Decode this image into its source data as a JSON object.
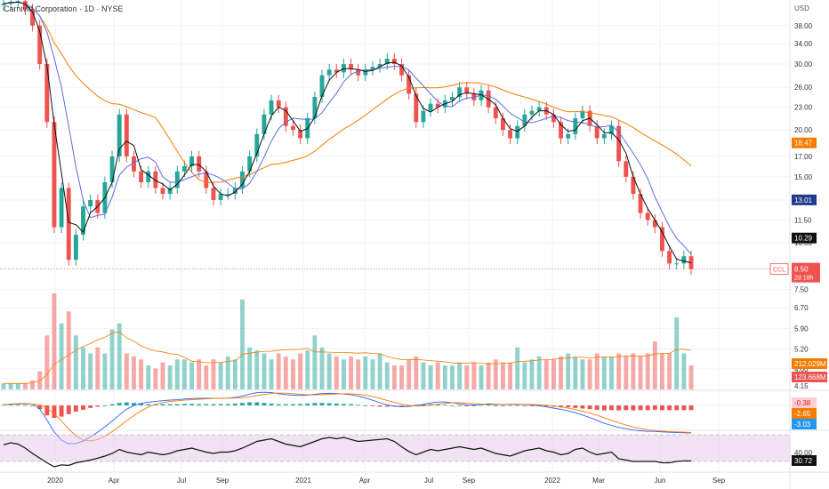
{
  "header": {
    "title": "Carnival Corporation · 1D · NYSE",
    "currency": "USD"
  },
  "chart_data": {
    "type": "candlestick",
    "ticker": "CCL",
    "currency": "USD",
    "x_tick_labels": [
      "2020",
      "Apr",
      "Jul",
      "Sep",
      "2021",
      "Apr",
      "Jul",
      "Sep",
      "2022",
      "Mar",
      "Jun",
      "Sep"
    ],
    "price_axis_ticks": [
      "38.00",
      "34.00",
      "30.00",
      "26.00",
      "23.00",
      "20.00",
      "17.00",
      "15.00",
      "13.00",
      "11.50",
      "10.00",
      "8.50",
      "7.50",
      "6.70",
      "5.90",
      "5.20",
      "4.60",
      "4.15"
    ],
    "price_axis_scale": "log",
    "price_range": [
      4.1,
      44.0
    ],
    "price_closes": [
      43.5,
      44.0,
      44.2,
      42.0,
      38.0,
      30.0,
      21.0,
      11.0,
      14.0,
      9.0,
      10.5,
      12.5,
      13.0,
      12.0,
      14.5,
      17.0,
      22.0,
      17.0,
      15.5,
      14.5,
      15.5,
      14.0,
      13.5,
      14.0,
      15.5,
      16.0,
      17.0,
      15.5,
      14.0,
      13.0,
      13.5,
      13.5,
      14.0,
      15.5,
      17.0,
      19.5,
      22.0,
      24.0,
      23.0,
      20.5,
      20.0,
      19.0,
      21.5,
      24.5,
      28.0,
      29.0,
      28.5,
      30.0,
      29.0,
      28.0,
      29.0,
      29.5,
      30.0,
      31.0,
      30.0,
      28.0,
      25.0,
      21.0,
      22.5,
      23.5,
      23.0,
      24.0,
      24.5,
      26.0,
      25.0,
      24.0,
      25.5,
      23.0,
      21.5,
      20.0,
      19.0,
      20.5,
      22.0,
      22.5,
      23.0,
      22.0,
      21.0,
      19.0,
      19.5,
      21.5,
      22.5,
      20.5,
      19.0,
      19.5,
      20.5,
      16.5,
      15.0,
      13.5,
      12.0,
      11.5,
      11.0,
      9.5,
      8.8,
      8.8,
      9.2,
      8.5
    ],
    "price_levels": {
      "ma_long_last": "18.47",
      "ma_mid_last": "13.01",
      "ma_short_last": "10.29",
      "last_price": "8.50",
      "bar_countdown": "2d 18h"
    },
    "volume_labels": {
      "volume_ma": "212.029M",
      "volume_last": "123.668M"
    },
    "volume_values": [
      0.1,
      0.1,
      0.1,
      0.1,
      0.15,
      0.3,
      0.9,
      1.6,
      1.1,
      1.3,
      0.9,
      0.7,
      0.6,
      0.7,
      0.6,
      1.0,
      1.1,
      0.6,
      0.55,
      0.5,
      0.4,
      0.35,
      0.45,
      0.4,
      0.5,
      0.5,
      0.45,
      0.5,
      0.4,
      0.5,
      0.45,
      0.55,
      0.5,
      1.5,
      0.7,
      0.65,
      0.6,
      0.5,
      0.6,
      0.55,
      0.5,
      0.6,
      0.65,
      0.9,
      0.7,
      0.6,
      0.55,
      0.5,
      0.55,
      0.5,
      0.55,
      0.5,
      0.6,
      0.45,
      0.4,
      0.4,
      0.5,
      0.55,
      0.45,
      0.4,
      0.45,
      0.4,
      0.4,
      0.45,
      0.4,
      0.45,
      0.4,
      0.45,
      0.5,
      0.45,
      0.45,
      0.7,
      0.45,
      0.5,
      0.55,
      0.5,
      0.5,
      0.55,
      0.6,
      0.55,
      0.5,
      0.5,
      0.6,
      0.55,
      0.55,
      0.6,
      0.55,
      0.6,
      0.55,
      0.6,
      0.8,
      0.6,
      0.6,
      1.2,
      0.6,
      0.4
    ],
    "macd": {
      "labels": [
        "-0.38",
        "-2.65",
        "-3.03"
      ],
      "histogram": [
        0.05,
        0.05,
        0.04,
        0.03,
        0.0,
        -0.3,
        -0.8,
        -1.0,
        -0.9,
        -0.7,
        -0.5,
        -0.35,
        -0.2,
        -0.1,
        0.0,
        0.1,
        0.2,
        0.25,
        0.2,
        0.15,
        0.1,
        0.1,
        0.1,
        0.1,
        0.1,
        0.12,
        0.12,
        0.1,
        0.1,
        0.1,
        0.1,
        0.1,
        0.15,
        0.2,
        0.25,
        0.25,
        0.2,
        0.15,
        0.1,
        0.1,
        0.1,
        0.12,
        0.15,
        0.2,
        0.2,
        0.18,
        0.15,
        0.12,
        0.1,
        0.05,
        0.0,
        -0.05,
        -0.1,
        -0.1,
        -0.08,
        -0.05,
        0.0,
        0.05,
        0.08,
        0.1,
        0.1,
        0.05,
        0.0,
        -0.05,
        -0.05,
        0.0,
        0.05,
        0.05,
        0.0,
        0.0,
        0.02,
        0.02,
        0.0,
        -0.02,
        -0.05,
        -0.08,
        -0.1,
        -0.12,
        -0.15,
        -0.2,
        -0.25,
        -0.3,
        -0.35,
        -0.4,
        -0.38,
        -0.4,
        -0.38,
        -0.4,
        -0.38,
        -0.38,
        -0.35,
        -0.38,
        -0.38,
        -0.38,
        -0.38,
        -0.38
      ]
    },
    "rsi": {
      "label": "30.72",
      "axis_label": "40.00",
      "values": [
        55,
        58,
        56,
        50,
        42,
        35,
        28,
        22,
        25,
        24,
        28,
        30,
        32,
        35,
        38,
        42,
        48,
        44,
        42,
        40,
        44,
        42,
        40,
        42,
        46,
        48,
        50,
        47,
        44,
        42,
        44,
        44,
        46,
        50,
        55,
        60,
        62,
        64,
        60,
        56,
        54,
        52,
        56,
        60,
        64,
        66,
        64,
        66,
        63,
        60,
        61,
        62,
        63,
        64,
        60,
        52,
        45,
        40,
        44,
        48,
        46,
        48,
        50,
        52,
        50,
        48,
        50,
        46,
        42,
        40,
        38,
        42,
        46,
        48,
        50,
        46,
        44,
        40,
        42,
        48,
        50,
        44,
        40,
        42,
        44,
        34,
        32,
        30,
        30,
        30,
        30,
        28,
        28,
        30,
        31,
        30.72
      ]
    }
  }
}
